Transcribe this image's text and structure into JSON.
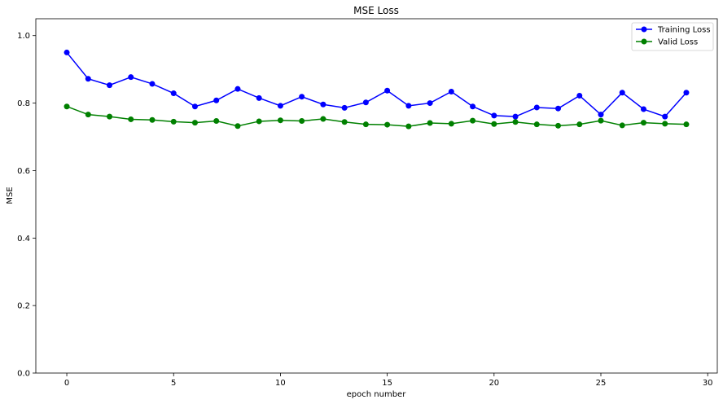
{
  "chart_data": {
    "type": "line",
    "title": "MSE Loss",
    "xlabel": "epoch number",
    "ylabel": "MSE",
    "xlim": [
      -1.45,
      30.45
    ],
    "ylim": [
      0.0,
      1.05
    ],
    "x_ticks": [
      0,
      5,
      10,
      15,
      20,
      25,
      30
    ],
    "x_tick_labels": [
      "0",
      "5",
      "10",
      "15",
      "20",
      "25",
      "30"
    ],
    "y_ticks": [
      0.0,
      0.2,
      0.4,
      0.6,
      0.8,
      1.0
    ],
    "y_tick_labels": [
      "0.0",
      "0.2",
      "0.4",
      "0.6",
      "0.8",
      "1.0"
    ],
    "grid": false,
    "legend_position": "top-right",
    "x": [
      0,
      1,
      2,
      3,
      4,
      5,
      6,
      7,
      8,
      9,
      10,
      11,
      12,
      13,
      14,
      15,
      16,
      17,
      18,
      19,
      20,
      21,
      22,
      23,
      24,
      25,
      26,
      27,
      28,
      29
    ],
    "series": [
      {
        "name": "Training Loss",
        "color": "#0000ff",
        "marker": "circle",
        "values": [
          0.95,
          0.872,
          0.853,
          0.877,
          0.857,
          0.829,
          0.79,
          0.808,
          0.842,
          0.815,
          0.792,
          0.819,
          0.796,
          0.786,
          0.802,
          0.837,
          0.792,
          0.8,
          0.834,
          0.79,
          0.763,
          0.76,
          0.787,
          0.784,
          0.822,
          0.766,
          0.831,
          0.782,
          0.76,
          0.831
        ]
      },
      {
        "name": "Valid Loss",
        "color": "#008000",
        "marker": "circle",
        "values": [
          0.79,
          0.766,
          0.76,
          0.752,
          0.75,
          0.745,
          0.742,
          0.747,
          0.732,
          0.746,
          0.749,
          0.747,
          0.753,
          0.744,
          0.737,
          0.736,
          0.731,
          0.741,
          0.739,
          0.748,
          0.738,
          0.744,
          0.737,
          0.733,
          0.737,
          0.748,
          0.734,
          0.742,
          0.739,
          0.737
        ]
      }
    ]
  }
}
